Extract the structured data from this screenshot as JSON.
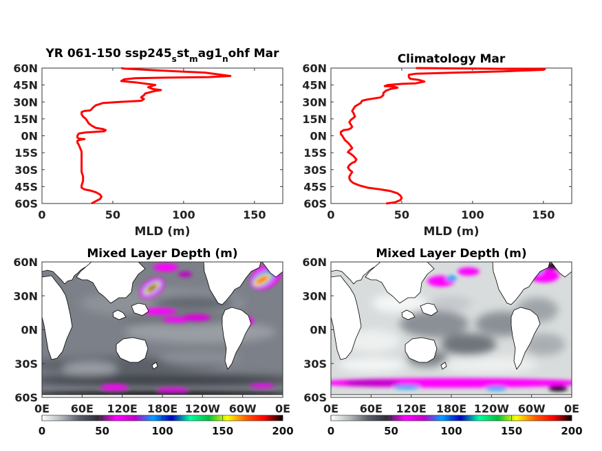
{
  "chart_data": [
    {
      "type": "line",
      "title_main": "YR 061-150 ssp245",
      "title_parts": [
        {
          "t": "YR 061-150 ssp245",
          "sub": false
        },
        {
          "t": "s",
          "sub": true
        },
        {
          "t": "st",
          "sub": false
        },
        {
          "t": "m",
          "sub": true
        },
        {
          "t": "ag1",
          "sub": false
        },
        {
          "t": "n",
          "sub": true
        },
        {
          "t": "ohf Mar",
          "sub": false
        }
      ],
      "xlabel": "MLD (m)",
      "xlim": [
        0,
        170
      ],
      "ylim": [
        -60,
        60
      ],
      "xticks": [
        "0",
        "50",
        "100",
        "150"
      ],
      "yticks": [
        "60N",
        "45N",
        "30N",
        "15N",
        "0N",
        "15S",
        "30S",
        "45S",
        "60S"
      ],
      "series": [
        {
          "color": "#ff0000",
          "points": [
            [
              56,
              60
            ],
            [
              58,
              59.5
            ],
            [
              80,
              58
            ],
            [
              115,
              56
            ],
            [
              133,
              53
            ],
            [
              118,
              52
            ],
            [
              85,
              51.5
            ],
            [
              66,
              51
            ],
            [
              58,
              50
            ],
            [
              56,
              48.5
            ],
            [
              68,
              47
            ],
            [
              80,
              45
            ],
            [
              75,
              43
            ],
            [
              78,
              41.5
            ],
            [
              84,
              40.5
            ],
            [
              79,
              39.5
            ],
            [
              73,
              37.5
            ],
            [
              72,
              36
            ],
            [
              70,
              34
            ],
            [
              72,
              32.5
            ],
            [
              70,
              31
            ],
            [
              55,
              30
            ],
            [
              43,
              29
            ],
            [
              38,
              27
            ],
            [
              36,
              25
            ],
            [
              35,
              23.5
            ],
            [
              34,
              22.5
            ],
            [
              30,
              22
            ],
            [
              28,
              21
            ],
            [
              28,
              19
            ],
            [
              29,
              17
            ],
            [
              31,
              15
            ],
            [
              32,
              13
            ],
            [
              33,
              11
            ],
            [
              35,
              9
            ],
            [
              38,
              7
            ],
            [
              43,
              6
            ],
            [
              45,
              5
            ],
            [
              44,
              4
            ],
            [
              38,
              3.5
            ],
            [
              31,
              3
            ],
            [
              26,
              2
            ],
            [
              25,
              0
            ],
            [
              25,
              -1.5
            ],
            [
              26,
              -2.5
            ],
            [
              30,
              -3
            ],
            [
              27,
              -3.5
            ],
            [
              25,
              -4.5
            ],
            [
              25,
              -6
            ],
            [
              26,
              -8
            ],
            [
              27,
              -11
            ],
            [
              28,
              -14
            ],
            [
              28,
              -17
            ],
            [
              28,
              -20
            ],
            [
              28,
              -24
            ],
            [
              28,
              -28
            ],
            [
              28,
              -32
            ],
            [
              29,
              -36
            ],
            [
              29,
              -40
            ],
            [
              28,
              -44
            ],
            [
              28,
              -46
            ],
            [
              30,
              -47.5
            ],
            [
              34,
              -48.5
            ],
            [
              38,
              -50
            ],
            [
              41,
              -52
            ],
            [
              42,
              -54
            ],
            [
              41,
              -56
            ],
            [
              38,
              -58
            ],
            [
              35,
              -60
            ]
          ]
        }
      ]
    },
    {
      "type": "line",
      "title": "Climatology Mar",
      "xlabel": "MLD (m)",
      "xlim": [
        0,
        170
      ],
      "ylim": [
        -60,
        60
      ],
      "xticks": [
        "0",
        "50",
        "100",
        "150"
      ],
      "yticks": [
        "60N",
        "45N",
        "30N",
        "15N",
        "0N",
        "15S",
        "30S",
        "45S",
        "60S"
      ],
      "series": [
        {
          "color": "#ff0000",
          "points": [
            [
              60,
              60
            ],
            [
              105,
              59.5
            ],
            [
              151,
              59
            ],
            [
              150,
              58.5
            ],
            [
              120,
              57
            ],
            [
              88,
              56
            ],
            [
              60,
              55
            ],
            [
              55,
              54
            ],
            [
              55,
              52
            ],
            [
              56,
              50.5
            ],
            [
              62,
              49.5
            ],
            [
              66,
              48
            ],
            [
              60,
              46.5
            ],
            [
              50,
              46
            ],
            [
              40,
              45
            ],
            [
              38,
              44
            ],
            [
              45,
              43.5
            ],
            [
              47,
              42.5
            ],
            [
              42,
              41.5
            ],
            [
              39,
              40
            ],
            [
              37,
              38
            ],
            [
              37,
              36
            ],
            [
              35,
              34
            ],
            [
              30,
              33
            ],
            [
              25,
              32
            ],
            [
              22,
              31
            ],
            [
              21,
              29
            ],
            [
              19,
              27.5
            ],
            [
              17,
              26
            ],
            [
              16,
              24
            ],
            [
              15,
              22
            ],
            [
              16,
              20
            ],
            [
              17,
              17
            ],
            [
              15,
              15
            ],
            [
              14,
              14
            ],
            [
              13,
              12
            ],
            [
              14,
              10
            ],
            [
              15,
              8
            ],
            [
              14,
              6.5
            ],
            [
              12,
              5.5
            ],
            [
              9,
              5
            ],
            [
              7,
              3.5
            ],
            [
              7,
              1.5
            ],
            [
              8,
              0
            ],
            [
              9,
              -2
            ],
            [
              10,
              -4
            ],
            [
              12,
              -6
            ],
            [
              14,
              -9
            ],
            [
              15,
              -11
            ],
            [
              13,
              -13
            ],
            [
              12,
              -14.5
            ],
            [
              14,
              -16
            ],
            [
              16,
              -18
            ],
            [
              18,
              -21
            ],
            [
              17,
              -23
            ],
            [
              15,
              -24
            ],
            [
              13,
              -26
            ],
            [
              12,
              -28
            ],
            [
              13,
              -30
            ],
            [
              15,
              -32
            ],
            [
              14,
              -34
            ],
            [
              13,
              -36
            ],
            [
              13,
              -38
            ],
            [
              14,
              -40
            ],
            [
              16,
              -42
            ],
            [
              20,
              -44
            ],
            [
              26,
              -46
            ],
            [
              35,
              -47.5
            ],
            [
              42,
              -49
            ],
            [
              47,
              -51
            ],
            [
              49,
              -53
            ],
            [
              50,
              -55
            ],
            [
              49,
              -57
            ],
            [
              45,
              -59
            ],
            [
              39,
              -60
            ]
          ]
        }
      ]
    },
    {
      "type": "heatmap",
      "title": "Mixed Layer Depth (m)",
      "yticks": [
        "60N",
        "30N",
        "0N",
        "30S",
        "60S"
      ],
      "xticks": [
        "0E",
        "60E",
        "120E",
        "180E",
        "120W",
        "60W",
        "0E"
      ],
      "colorbar": {
        "ticks": [
          "0",
          "50",
          "100",
          "150",
          "200"
        ],
        "range": [
          0,
          200
        ]
      }
    },
    {
      "type": "heatmap",
      "title": "Mixed Layer Depth (m)",
      "yticks": [
        "60N",
        "30N",
        "0N",
        "30S",
        "60S"
      ],
      "xticks": [
        "0E",
        "60E",
        "120E",
        "180E",
        "120W",
        "60W",
        "0E"
      ],
      "colorbar": {
        "ticks": [
          "0",
          "50",
          "100",
          "150",
          "200"
        ],
        "range": [
          0,
          200
        ]
      }
    }
  ],
  "colors": {
    "line": "#ff0000",
    "land": "#ffffff",
    "coast": "#000000",
    "colormap_stops": [
      "#ffffff",
      "#b6bcbe",
      "#5a6068",
      "#2e3038",
      "#ff00ff",
      "#c000c8",
      "#00a0ff",
      "#0000c0",
      "#00ffa0",
      "#00c040",
      "#ffff00",
      "#ff6000",
      "#ff0000",
      "#000000"
    ]
  }
}
